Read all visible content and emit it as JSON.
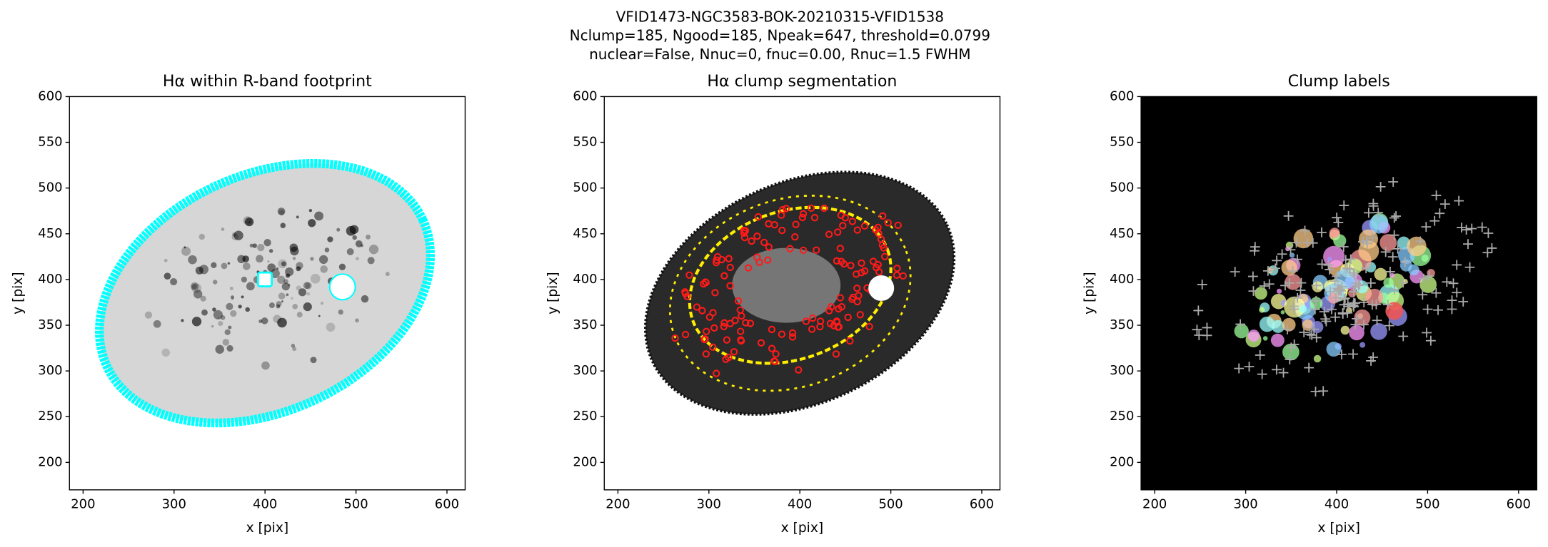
{
  "suptitle": [
    "VFID1473-NGC3583-BOK-20210315-VFID1538",
    "Nclump=185, Ngood=185, Npeak=647, threshold=0.0799",
    "nuclear=False, Nnuc=0, fnuc=0.00, Rnuc=1.5 FWHM"
  ],
  "chart_data": [
    {
      "type": "footprint",
      "title": "Hα within R-band footprint",
      "xlabel": "x [pix]",
      "ylabel": "y [pix]",
      "xlim": [
        185,
        620
      ],
      "ylim": [
        170,
        600
      ],
      "xticks": [
        200,
        300,
        400,
        500,
        600
      ],
      "yticks": [
        200,
        250,
        300,
        350,
        400,
        450,
        500,
        550,
        600
      ]
    },
    {
      "type": "segmentation",
      "title": "Hα clump segmentation",
      "xlabel": "x [pix]",
      "ylabel": "y [pix]",
      "xlim": [
        185,
        620
      ],
      "ylim": [
        170,
        600
      ],
      "xticks": [
        200,
        300,
        400,
        500,
        600
      ],
      "yticks": [
        200,
        250,
        300,
        350,
        400,
        450,
        500,
        550,
        600
      ]
    },
    {
      "type": "labels",
      "title": "Clump labels",
      "xlabel": "x [pix]",
      "ylabel": "y [pix]",
      "xlim": [
        185,
        620
      ],
      "ylim": [
        170,
        600
      ],
      "xticks": [
        200,
        300,
        400,
        500,
        600
      ],
      "yticks": [
        200,
        250,
        300,
        350,
        400,
        450,
        500,
        550,
        600
      ]
    }
  ]
}
